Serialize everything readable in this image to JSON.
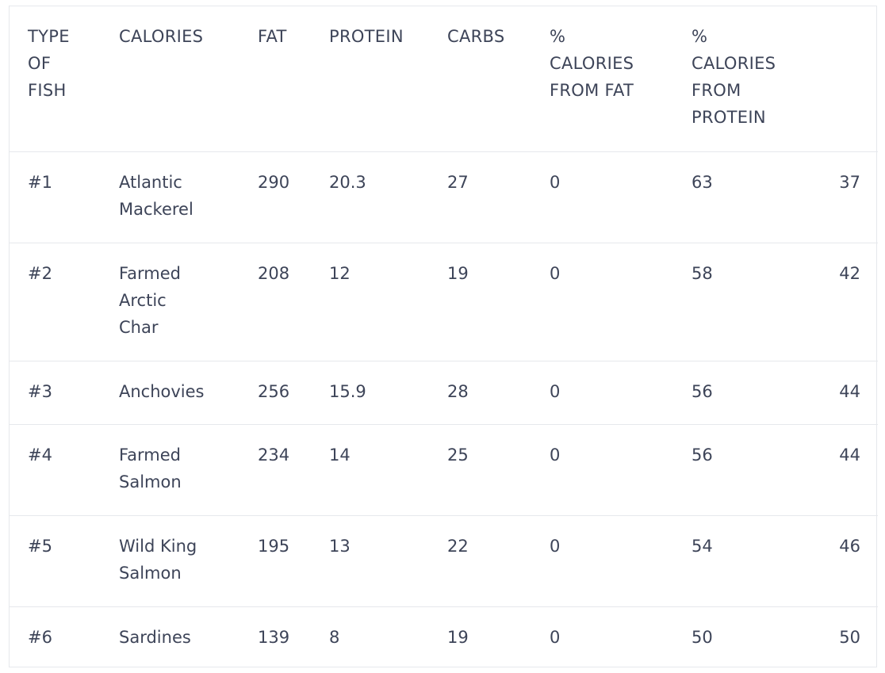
{
  "table": {
    "headers": [
      "TYPE\nOF\nFISH",
      "CALORIES",
      "FAT",
      "PROTEIN",
      "CARBS",
      "%\nCALORIES\nFROM FAT",
      "%\nCALORIES\nFROM\nPROTEIN",
      ""
    ],
    "rows": [
      [
        "#1",
        "Atlantic\nMackerel",
        "290",
        "20.3",
        "27",
        "0",
        "63",
        "37"
      ],
      [
        "#2",
        "Farmed\nArctic\nChar",
        "208",
        "12",
        "19",
        "0",
        "58",
        "42"
      ],
      [
        "#3",
        "Anchovies",
        "256",
        "15.9",
        "28",
        "0",
        "56",
        "44"
      ],
      [
        "#4",
        "Farmed\nSalmon",
        "234",
        "14",
        "25",
        "0",
        "56",
        "44"
      ],
      [
        "#5",
        "Wild King\nSalmon",
        "195",
        "13",
        "22",
        "0",
        "54",
        "46"
      ],
      [
        "#6",
        "Sardines",
        "139",
        "8",
        "19",
        "0",
        "50",
        "50"
      ]
    ]
  }
}
